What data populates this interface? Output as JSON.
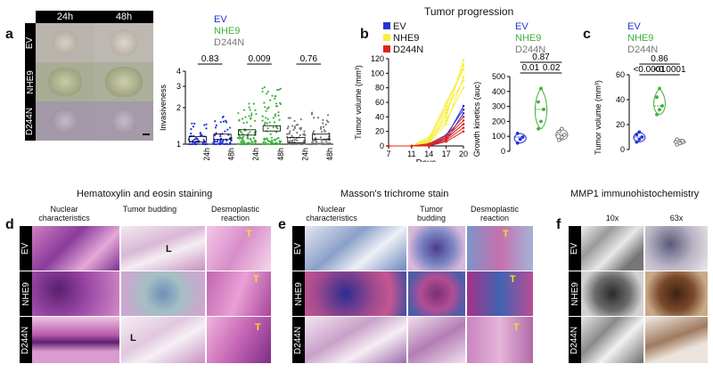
{
  "panel_a": {
    "letter": "a",
    "time_labels": [
      "24h",
      "48h"
    ],
    "row_labels": [
      "EV",
      "NHE9",
      "D244N"
    ],
    "legend": [
      "EV",
      "NHE9",
      "D244N"
    ],
    "legend_colors": [
      "#2432d8",
      "#3fb03c",
      "#777777"
    ]
  },
  "panel_b": {
    "letter": "b",
    "title": "Tumor progression",
    "legend": [
      "EV",
      "NHE9",
      "D244N"
    ],
    "legend_colors": [
      "#2432d8",
      "#f5f040",
      "#e2231a"
    ],
    "auc_legend": [
      "EV",
      "NHE9",
      "D244N"
    ]
  },
  "panel_c": {
    "letter": "c",
    "legend": [
      "EV",
      "NHE9",
      "D244N"
    ]
  },
  "panel_d": {
    "letter": "d",
    "title": "Hematoxylin and eosin staining",
    "col_labels": [
      "Nuclear characteristics",
      "Tumor budding",
      "Desmoplastic reaction"
    ],
    "row_labels": [
      "EV",
      "NHE9",
      "D244N"
    ],
    "marks": [
      "L",
      "T",
      "T",
      "L",
      "T"
    ]
  },
  "panel_e": {
    "letter": "e",
    "title": "Masson's trichrome stain",
    "col_labels": [
      "Nuclear characteristics",
      "Tumor budding",
      "Desmoplastic reaction"
    ],
    "row_labels": [
      "EV",
      "NHE9",
      "D244N"
    ],
    "marks": [
      "T",
      "T",
      "T"
    ]
  },
  "panel_f": {
    "letter": "f",
    "title": "MMP1 immunohistochemistry",
    "col_labels": [
      "10x",
      "63x"
    ],
    "row_labels": [
      "EV",
      "NHE9",
      "D244N"
    ]
  },
  "chart_data": [
    {
      "type": "scatter",
      "name_id": "invasiveness",
      "ylabel": "Invasiveness",
      "categories": [
        "24h",
        "48h",
        "24h",
        "48h",
        "24h",
        "48h"
      ],
      "groups": [
        "EV",
        "EV",
        "NHE9",
        "NHE9",
        "D244N",
        "D244N"
      ],
      "medians": [
        1.1,
        1.15,
        1.25,
        1.35,
        1.08,
        1.15
      ],
      "spread_max": [
        1.55,
        1.75,
        2.3,
        3.0,
        1.7,
        1.85
      ],
      "yticks": [
        1,
        2,
        3,
        4
      ],
      "ylim": [
        1,
        4
      ],
      "log_scale": true,
      "pvalues": [
        {
          "label": "0.83",
          "pair": [
            0,
            1
          ]
        },
        {
          "label": "0.009",
          "pair": [
            2,
            3
          ]
        },
        {
          "label": "0.76",
          "pair": [
            4,
            5
          ]
        }
      ]
    },
    {
      "type": "line",
      "name_id": "tumor_volume_time",
      "xlabel": "Days",
      "ylabel": "Tumor volume (mm³)",
      "x": [
        7,
        11,
        14,
        17,
        20
      ],
      "xlim": [
        7,
        20
      ],
      "ylim": [
        0,
        120
      ],
      "yticks": [
        0,
        20,
        40,
        60,
        80,
        100,
        120
      ],
      "series": [
        {
          "name": "EV",
          "color": "#2432d8",
          "lines": [
            [
              0,
              0,
              0,
              8,
              45
            ],
            [
              0,
              0,
              2,
              12,
              55
            ],
            [
              0,
              0,
              1,
              10,
              30
            ],
            [
              0,
              0,
              3,
              15,
              50
            ]
          ]
        },
        {
          "name": "NHE9",
          "color": "#f5f040",
          "lines": [
            [
              0,
              0,
              5,
              40,
              118
            ],
            [
              0,
              0,
              8,
              55,
              110
            ],
            [
              0,
              0,
              4,
              30,
              95
            ],
            [
              0,
              0,
              10,
              60,
              105
            ],
            [
              0,
              0,
              6,
              35,
              80
            ],
            [
              0,
              0,
              12,
              50,
              90
            ],
            [
              0,
              0,
              7,
              45,
              112
            ]
          ]
        },
        {
          "name": "D244N",
          "color": "#e2231a",
          "lines": [
            [
              0,
              0,
              2,
              10,
              30
            ],
            [
              0,
              0,
              1,
              8,
              25
            ],
            [
              0,
              0,
              3,
              14,
              40
            ],
            [
              0,
              0,
              0,
              6,
              20
            ],
            [
              0,
              0,
              2,
              12,
              35
            ]
          ]
        }
      ]
    },
    {
      "type": "violin",
      "name_id": "growth_kinetics",
      "ylabel": "Growth kinetics (auc)",
      "categories": [
        "EV",
        "NHE9",
        "D244N"
      ],
      "colors": [
        "#2432d8",
        "#3fb03c",
        "#777777"
      ],
      "points": [
        [
          55,
          80,
          95,
          120
        ],
        [
          150,
          200,
          280,
          330,
          420
        ],
        [
          75,
          95,
          110,
          130,
          150
        ]
      ],
      "ylim": [
        0,
        500
      ],
      "yticks": [
        0,
        100,
        200,
        300,
        400,
        500
      ],
      "pvalues": [
        {
          "label": "0.87",
          "pair": [
            0,
            2
          ],
          "level": 2
        },
        {
          "label": "0.01",
          "pair": [
            0,
            1
          ],
          "level": 1
        },
        {
          "label": "0.02",
          "pair": [
            1,
            2
          ],
          "level": 1
        }
      ]
    },
    {
      "type": "violin",
      "name_id": "tumor_volume_c",
      "ylabel": "Tumor volume (mm³)",
      "categories": [
        "EV",
        "NHE9",
        "D244N"
      ],
      "colors": [
        "#2432d8",
        "#3fb03c",
        "#777777"
      ],
      "points": [
        [
          6,
          8,
          10,
          12,
          14
        ],
        [
          28,
          32,
          35,
          42,
          49
        ],
        [
          4,
          5,
          7,
          8
        ]
      ],
      "ylim": [
        0,
        60
      ],
      "yticks": [
        0,
        20,
        40,
        60
      ],
      "pvalues": [
        {
          "label": "0.86",
          "pair": [
            0,
            2
          ],
          "level": 2
        },
        {
          "label": "<0.0001",
          "pair": [
            0,
            1
          ],
          "level": 1
        },
        {
          "label": "<0.0001",
          "pair": [
            1,
            2
          ],
          "level": 1
        }
      ]
    }
  ]
}
